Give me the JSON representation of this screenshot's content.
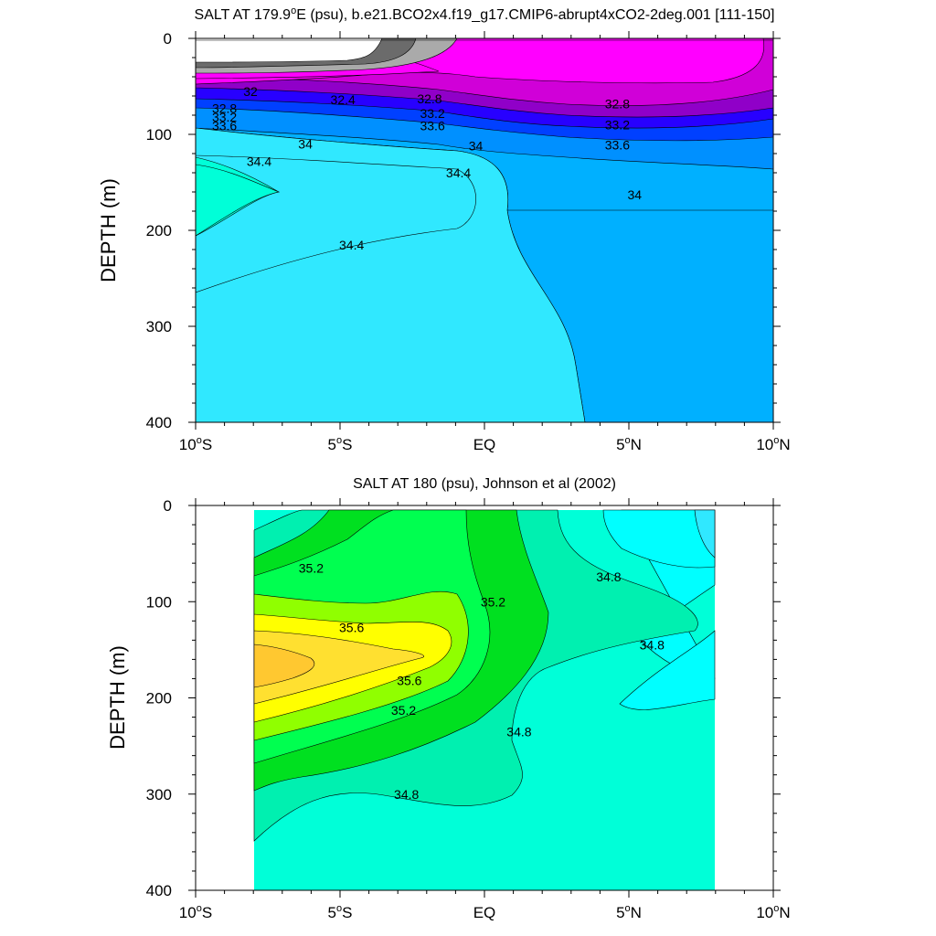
{
  "colors": {
    "s_lt_32": "#ffffff",
    "s_32_32_2": "#6b6b6b",
    "s_32_2_32_4": "#aaaaaa",
    "s_32_4_32_8": "#ff00ff",
    "s_32_8_33_0": "#d000d8",
    "s_33_0_33_2": "#9000c8",
    "s_33_2_33_4": "#2800ff",
    "s_33_4_33_6": "#0040ff",
    "s_33_6_34_0": "#0090ff",
    "s_34_0_34_4": "#00b0ff",
    "s_34_4_34_6": "#30e8ff",
    "s_34_6_34_8": "#00ffff",
    "s_34_8_35_0": "#00ffd8",
    "s_35_0_35_2": "#00f0b0",
    "s_35_2_35_4": "#00e020",
    "s_35_4_35_6": "#00ff50",
    "s_35_6_35_8": "#90ff00",
    "s_35_8_36_0": "#ffff00",
    "s_36_0_36_2": "#ffe030",
    "s_gt_36_2": "#ffc830"
  },
  "chart_data": [
    {
      "type": "heatmap",
      "title_prefix": "SALT AT 179.9",
      "title_sup": "o",
      "title_suffix": "E (psu), b.e21.BCO2x4.f19_g17.CMIP6-abrupt4xCO2-2deg.001 [111-150]",
      "xlabel": "",
      "ylabel": "DEPTH (m)",
      "xlim": [
        -10,
        10
      ],
      "ylim": [
        0,
        400
      ],
      "y_reversed": true,
      "x_ticks": [
        {
          "value": -10,
          "main": "10",
          "sup": "o",
          "suffix": "S"
        },
        {
          "value": -5,
          "main": "5",
          "sup": "o",
          "suffix": "S"
        },
        {
          "value": 0,
          "main": "EQ",
          "sup": "",
          "suffix": ""
        },
        {
          "value": 5,
          "main": "5",
          "sup": "o",
          "suffix": "N"
        },
        {
          "value": 10,
          "main": "10",
          "sup": "o",
          "suffix": "N"
        }
      ],
      "y_ticks": [
        0,
        100,
        200,
        300,
        400
      ],
      "contour_labels": [
        {
          "text": "32",
          "lat": -8.1,
          "depth": 55
        },
        {
          "text": "32.4",
          "lat": -4.9,
          "depth": 64
        },
        {
          "text": "32.8",
          "lat": -9.0,
          "depth": 73
        },
        {
          "text": "33.2",
          "lat": -9.0,
          "depth": 82
        },
        {
          "text": "33.6",
          "lat": -9.0,
          "depth": 91
        },
        {
          "text": "34",
          "lat": -6.2,
          "depth": 110
        },
        {
          "text": "34.4",
          "lat": -7.8,
          "depth": 128
        },
        {
          "text": "32.8",
          "lat": -1.9,
          "depth": 63
        },
        {
          "text": "33.2",
          "lat": -1.8,
          "depth": 78
        },
        {
          "text": "33.6",
          "lat": -1.8,
          "depth": 91
        },
        {
          "text": "34",
          "lat": -0.3,
          "depth": 112
        },
        {
          "text": "34.4",
          "lat": -0.9,
          "depth": 140
        },
        {
          "text": "34.4",
          "lat": -4.6,
          "depth": 215
        },
        {
          "text": "32.8",
          "lat": 4.6,
          "depth": 68
        },
        {
          "text": "33.2",
          "lat": 4.6,
          "depth": 90
        },
        {
          "text": "33.6",
          "lat": 4.6,
          "depth": 111
        },
        {
          "text": "34",
          "lat": 5.2,
          "depth": 163
        }
      ]
    },
    {
      "type": "heatmap",
      "title": "SALT AT 180 (psu), Johnson et al (2002)",
      "xlabel": "",
      "ylabel": "DEPTH (m)",
      "xlim": [
        -10,
        10
      ],
      "ylim": [
        0,
        400
      ],
      "y_reversed": true,
      "data_extent_lat": [
        -8,
        8
      ],
      "data_extent_depth": [
        5,
        400
      ],
      "x_ticks": [
        {
          "value": -10,
          "main": "10",
          "sup": "o",
          "suffix": "S"
        },
        {
          "value": -5,
          "main": "5",
          "sup": "o",
          "suffix": "S"
        },
        {
          "value": 0,
          "main": "EQ",
          "sup": "",
          "suffix": ""
        },
        {
          "value": 5,
          "main": "5",
          "sup": "o",
          "suffix": "N"
        },
        {
          "value": 10,
          "main": "10",
          "sup": "o",
          "suffix": "N"
        }
      ],
      "y_ticks": [
        0,
        100,
        200,
        300,
        400
      ],
      "contour_labels": [
        {
          "text": "35.2",
          "lat": -6.0,
          "depth": 65
        },
        {
          "text": "35.6",
          "lat": -4.6,
          "depth": 127
        },
        {
          "text": "35.6",
          "lat": -2.6,
          "depth": 182
        },
        {
          "text": "35.2",
          "lat": -2.8,
          "depth": 213
        },
        {
          "text": "35.2",
          "lat": 0.3,
          "depth": 100
        },
        {
          "text": "34.8",
          "lat": 4.3,
          "depth": 74
        },
        {
          "text": "34.8",
          "lat": 5.8,
          "depth": 145
        },
        {
          "text": "34.8",
          "lat": 1.2,
          "depth": 235
        },
        {
          "text": "34.8",
          "lat": -2.7,
          "depth": 300
        }
      ]
    }
  ]
}
